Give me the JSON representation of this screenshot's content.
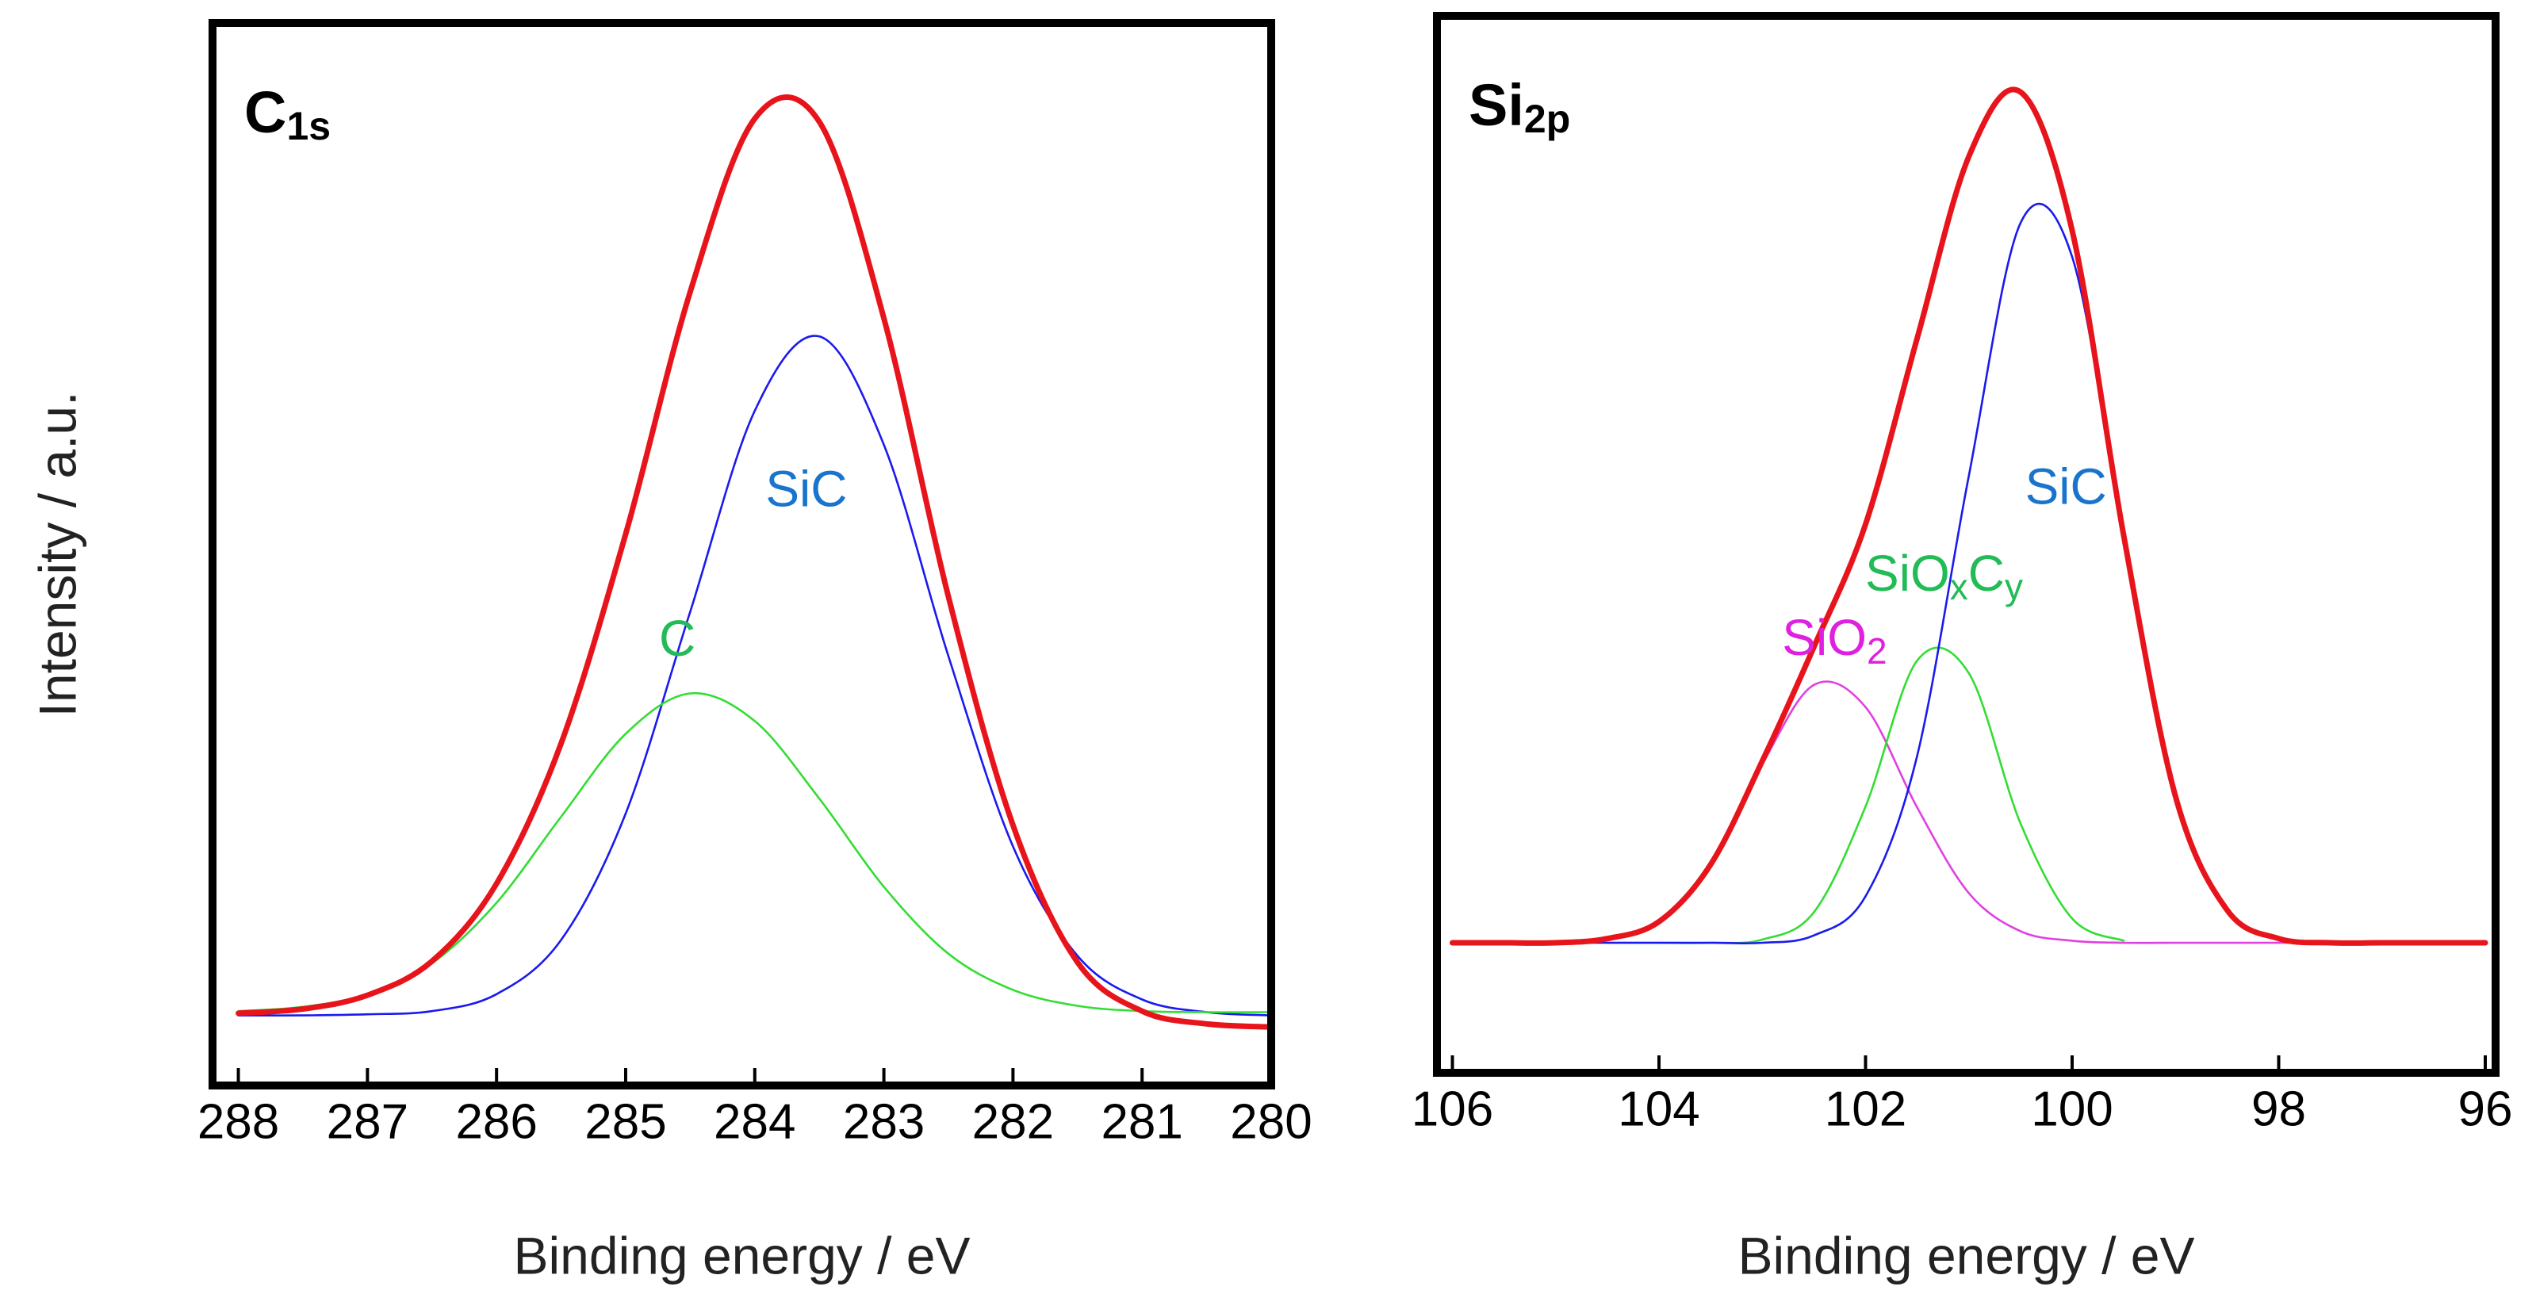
{
  "chart_data": [
    {
      "type": "line",
      "title": {
        "text": "C",
        "sub": "1s"
      },
      "ylabel": "Intensity / a.u.",
      "xlabel": "Binding energy / eV",
      "xlim": [
        288.2,
        280
      ],
      "xticks": [
        288,
        287,
        286,
        285,
        284,
        283,
        282,
        281,
        280
      ],
      "ylim": [
        0,
        100
      ],
      "x": [
        288,
        287.5,
        287,
        286.5,
        286,
        285.5,
        285,
        284.5,
        284,
        283.5,
        283,
        282.5,
        282,
        281.5,
        281,
        280.5,
        280
      ],
      "series": [
        {
          "color": "#1a1aee",
          "values": [
            6.6,
            6.6,
            6.7,
            7.0,
            8.6,
            13.7,
            25.6,
            44.6,
            63.5,
            70.5,
            60.3,
            40.4,
            22.5,
            12.2,
            8.1,
            6.9,
            6.6
          ]
        },
        {
          "color": "#33dd33",
          "values": [
            7.0,
            7.4,
            8.6,
            11.5,
            17.2,
            25.3,
            33.1,
            36.9,
            34.3,
            27.0,
            18.7,
            12.4,
            9.0,
            7.5,
            7.0,
            6.9,
            6.9
          ]
        },
        {
          "color": "#e8141b",
          "thick": true,
          "values": [
            6.8,
            7.2,
            8.5,
            11.7,
            19.0,
            32.2,
            51.9,
            74.7,
            91.0,
            90.7,
            72.2,
            46.0,
            24.5,
            11.6,
            7.0,
            5.8,
            5.5
          ]
        }
      ],
      "annotations": [
        {
          "parts": [
            "SiC"
          ],
          "x": 283.6,
          "y": 55.8,
          "color": "#1874cd"
        },
        {
          "parts": [
            "C"
          ],
          "x": 284.6,
          "y": 41.7,
          "color": "#22bb55"
        }
      ]
    },
    {
      "type": "line",
      "title": {
        "text": "Si",
        "sub": "2p"
      },
      "xlabel": "Binding energy / eV",
      "xlim": [
        106.15,
        95.9
      ],
      "xticks": [
        106,
        104,
        102,
        100,
        98,
        96
      ],
      "ylim": [
        0,
        100
      ],
      "x": [
        106,
        105.5,
        105,
        104.5,
        104,
        103.5,
        103,
        102.5,
        102,
        101.5,
        101,
        100.5,
        100,
        99.5,
        99,
        98.5,
        98,
        97.5,
        97,
        96.5,
        96
      ],
      "series": [
        {
          "color": "#e040e0",
          "values": [
            12.3,
            12.3,
            12.3,
            12.7,
            14.3,
            19.7,
            29.2,
            36.7,
            34.6,
            25.1,
            17.0,
            13.4,
            12.5,
            12.3,
            12.3,
            12.3,
            12.3,
            12.3,
            12.3,
            12.3,
            12.3
          ]
        },
        {
          "color": "#33dd33",
          "values": [
            null,
            null,
            null,
            12.3,
            12.3,
            12.3,
            12.6,
            15.2,
            25.2,
            39.0,
            37.8,
            23.6,
            14.6,
            12.5,
            null,
            null,
            null,
            null,
            null,
            null,
            null
          ]
        },
        {
          "color": "#1a1aee",
          "values": [
            12.3,
            12.3,
            12.3,
            12.3,
            12.3,
            12.3,
            12.3,
            13.0,
            16.7,
            30.0,
            56.5,
            80.4,
            77.2,
            50.6,
            26.2,
            15.4,
            12.7,
            12.3,
            12.3,
            12.3,
            12.3
          ]
        },
        {
          "color": "#e8141b",
          "thick": true,
          "values": [
            12.3,
            12.3,
            12.3,
            12.7,
            14.3,
            19.7,
            29.5,
            40.3,
            51.9,
            69.5,
            86.7,
            92.8,
            79.7,
            50.8,
            26.2,
            15.4,
            12.7,
            12.3,
            12.3,
            12.3,
            12.3
          ]
        }
      ],
      "annotations": [
        {
          "parts": [
            "SiC"
          ],
          "x": 100.06,
          "y": 55.1,
          "color": "#1874cd"
        },
        {
          "parts": [
            "SiO",
            "x",
            "C",
            "y"
          ],
          "x": 101.24,
          "y": 46.9,
          "color": "#22bb55"
        },
        {
          "parts": [
            "SiO",
            "2"
          ],
          "x": 102.3,
          "y": 40.8,
          "color": "#e020e0"
        }
      ]
    }
  ]
}
